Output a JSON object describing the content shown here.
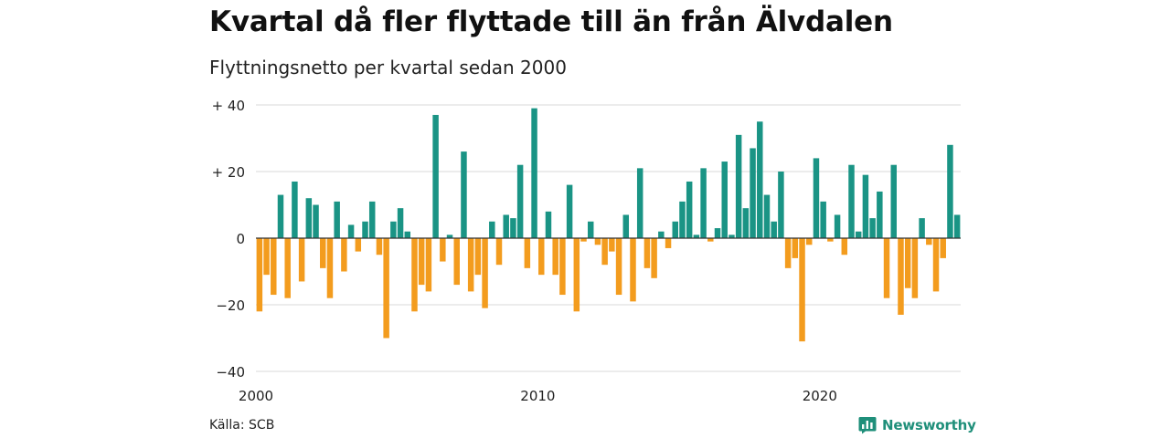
{
  "title": "Kvartal då fler flyttade till än från Älvdalen",
  "subtitle": "Flyttningsnetto per kvartal sedan 2000",
  "source": "Källa: SCB",
  "brand": {
    "name": "Newsworthy",
    "icon": "newsworthy-logo-icon"
  },
  "colors": {
    "positive": "#1a9485",
    "negative": "#f39c1e",
    "grid": "#d9d9d9",
    "zero": "#333333"
  },
  "chart_data": {
    "type": "bar",
    "title": "Kvartal då fler flyttade till än från Älvdalen",
    "subtitle": "Flyttningsnetto per kvartal sedan 2000",
    "xlabel": "",
    "ylabel": "",
    "ylim": [
      -40,
      40
    ],
    "yticks": [
      {
        "value": 40,
        "label": "+ 40"
      },
      {
        "value": 20,
        "label": "+ 20"
      },
      {
        "value": 0,
        "label": "0"
      },
      {
        "value": -20,
        "label": "−20"
      },
      {
        "value": -40,
        "label": "−40"
      }
    ],
    "xticks": [
      "2000",
      "2010",
      "2020"
    ],
    "grid": true,
    "legend": "none",
    "start_period": "2000 Q1",
    "frequency": "quarterly",
    "values": [
      -22,
      -11,
      -17,
      13,
      -18,
      17,
      -13,
      12,
      10,
      -9,
      -18,
      11,
      -10,
      4,
      -4,
      5,
      11,
      -5,
      -30,
      5,
      9,
      2,
      -22,
      -14,
      -16,
      37,
      -7,
      1,
      -14,
      26,
      -16,
      -11,
      -21,
      5,
      -8,
      7,
      6,
      22,
      -9,
      39,
      -11,
      8,
      -11,
      -17,
      16,
      -22,
      -1,
      5,
      -2,
      -8,
      -4,
      -17,
      7,
      -19,
      21,
      -9,
      -12,
      2,
      -3,
      5,
      11,
      17,
      1,
      21,
      -1,
      3,
      23,
      1,
      31,
      9,
      27,
      35,
      13,
      5,
      20,
      -9,
      -6,
      -31,
      -2,
      24,
      11,
      -1,
      7,
      -5,
      22,
      2,
      19,
      6,
      14,
      -18,
      22,
      -23,
      -15,
      -18,
      6,
      -2,
      -16,
      -6,
      28,
      7
    ]
  }
}
